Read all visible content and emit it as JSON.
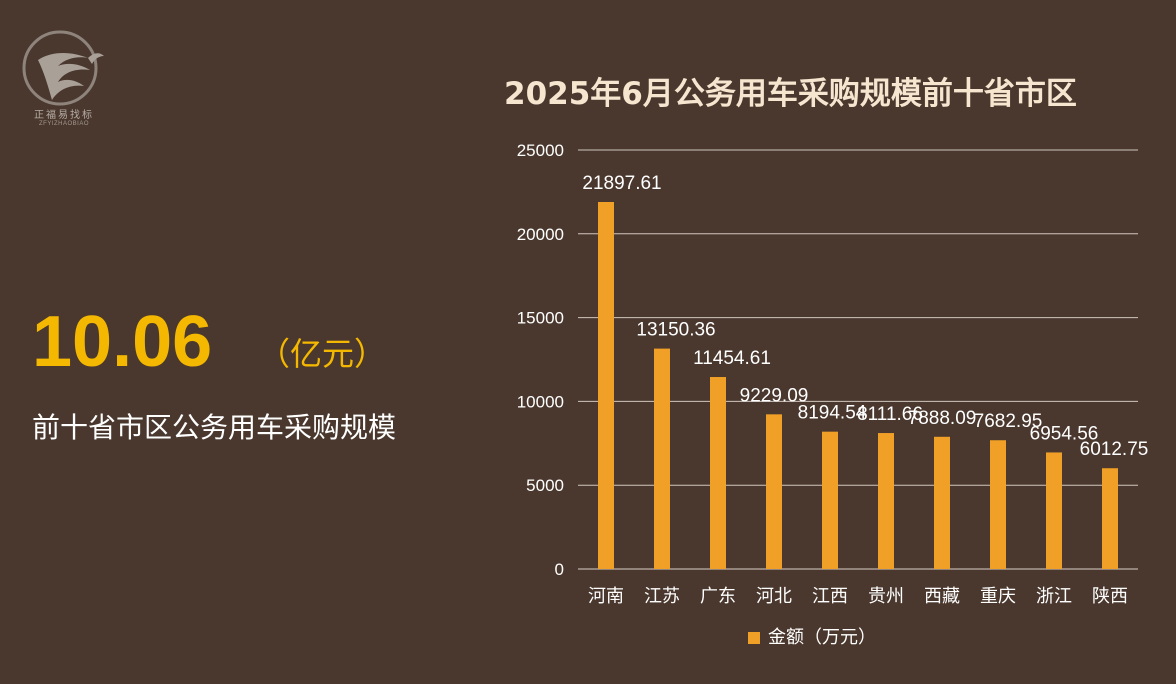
{
  "logo": {
    "name_cn": "正福易找标",
    "name_en": "ZFYIZHAOBIAO",
    "icon": "eagle-logo-icon"
  },
  "summary": {
    "value": "10.06",
    "unit": "（亿元）",
    "label": "前十省市区公务用车采购规模"
  },
  "colors": {
    "background": "#4a382e",
    "accent": "#f5b800",
    "bar": "#f0a026"
  },
  "chart_data": {
    "type": "bar",
    "title": "2025年6月公务用车采购规模前十省市区",
    "categories": [
      "河南",
      "江苏",
      "广东",
      "河北",
      "江西",
      "贵州",
      "西藏",
      "重庆",
      "浙江",
      "陕西"
    ],
    "series": [
      {
        "name": "金额（万元）",
        "values": [
          21897.61,
          13150.36,
          11454.61,
          9229.09,
          8194.54,
          8111.66,
          7888.09,
          7682.95,
          6954.56,
          6012.75
        ],
        "labels": [
          "21897.61",
          "13150.36",
          "11454.61",
          "9229.09",
          "8194.54",
          "8111.66",
          "7888.09",
          "7682.95",
          "6954.56",
          "6012.75"
        ]
      }
    ],
    "ylim": [
      0,
      25000
    ],
    "yticks": [
      "0",
      "5000",
      "10000",
      "15000",
      "20000",
      "25000"
    ],
    "grid": true,
    "legend": "bottom-center"
  }
}
